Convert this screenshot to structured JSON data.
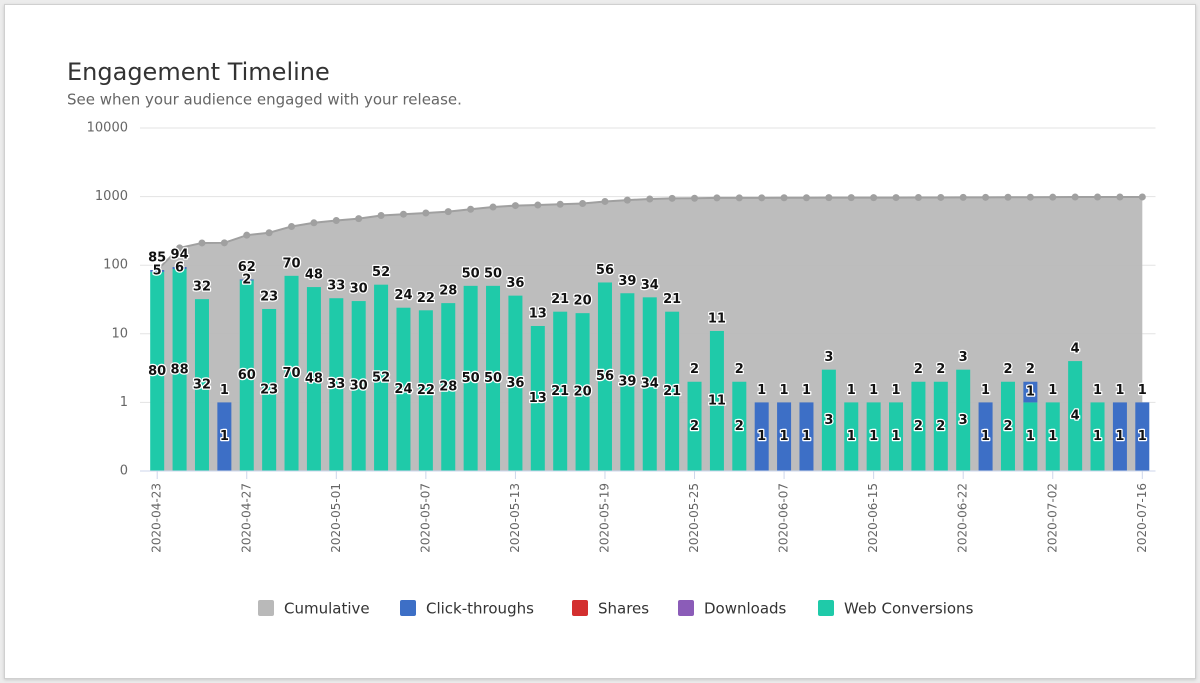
{
  "chart_data": {
    "type": "bar",
    "title": "Engagement Timeline",
    "subtitle": "See when your audience engaged with your release.",
    "log": true,
    "grid": true,
    "legend": "bottom",
    "ylim": [
      0,
      10000
    ],
    "yticks": [
      0,
      1,
      10,
      100,
      1000,
      10000
    ],
    "categories": [
      "2020-04-23",
      null,
      null,
      null,
      "2020-04-27",
      null,
      null,
      null,
      "2020-05-01",
      null,
      null,
      null,
      "2020-05-07",
      null,
      null,
      null,
      "2020-05-13",
      null,
      null,
      null,
      "2020-05-19",
      null,
      null,
      null,
      "2020-05-25",
      null,
      null,
      null,
      "2020-06-07",
      null,
      null,
      null,
      "2020-06-15",
      null,
      null,
      null,
      "2020-06-22",
      null,
      null,
      null,
      "2020-07-02",
      null,
      null,
      null,
      "2020-07-16"
    ],
    "stack_labels": [
      85,
      94,
      32,
      1,
      62,
      23,
      70,
      48,
      33,
      30,
      52,
      24,
      22,
      28,
      50,
      50,
      36,
      13,
      21,
      20,
      56,
      39,
      34,
      21,
      2,
      11,
      2,
      1,
      1,
      1,
      3,
      1,
      1,
      1,
      2,
      2,
      3,
      1,
      2,
      2,
      1,
      4,
      1,
      1,
      1
    ],
    "series": [
      {
        "name": "Cumulative",
        "type": "area",
        "color": "#b9b9b9",
        "values": [
          85,
          179,
          211,
          212,
          274,
          297,
          367,
          415,
          448,
          478,
          530,
          554,
          576,
          604,
          654,
          704,
          740,
          753,
          774,
          794,
          850,
          889,
          923,
          944,
          946,
          957,
          959,
          960,
          961,
          962,
          965,
          966,
          967,
          968,
          970,
          972,
          975,
          976,
          978,
          980,
          981,
          985,
          986,
          987,
          988
        ]
      },
      {
        "name": "Click-throughs",
        "type": "bar",
        "color": "#3d6fc6",
        "values": [
          5,
          6,
          null,
          1,
          2,
          null,
          null,
          null,
          null,
          null,
          null,
          null,
          null,
          null,
          null,
          null,
          null,
          null,
          null,
          null,
          null,
          null,
          null,
          null,
          null,
          null,
          null,
          1,
          1,
          1,
          null,
          null,
          null,
          null,
          null,
          null,
          null,
          1,
          null,
          1,
          null,
          null,
          null,
          1,
          1
        ]
      },
      {
        "name": "Shares",
        "type": "bar",
        "color": "#d32f2f",
        "values": [
          null,
          null,
          null,
          null,
          null,
          null,
          null,
          null,
          null,
          null,
          null,
          null,
          null,
          null,
          null,
          null,
          null,
          null,
          null,
          null,
          null,
          null,
          null,
          null,
          null,
          null,
          null,
          null,
          null,
          null,
          null,
          null,
          null,
          null,
          null,
          null,
          null,
          null,
          null,
          null,
          null,
          null,
          null,
          null,
          null
        ]
      },
      {
        "name": "Downloads",
        "type": "bar",
        "color": "#8b5cb8",
        "values": [
          null,
          null,
          null,
          null,
          null,
          null,
          null,
          null,
          null,
          null,
          null,
          null,
          null,
          null,
          null,
          null,
          null,
          null,
          null,
          null,
          null,
          null,
          null,
          null,
          null,
          null,
          null,
          null,
          null,
          null,
          null,
          null,
          null,
          null,
          null,
          null,
          null,
          null,
          null,
          null,
          null,
          null,
          null,
          null,
          null
        ]
      },
      {
        "name": "Web Conversions",
        "type": "bar",
        "color": "#1fcaa9",
        "values": [
          80,
          88,
          32,
          null,
          60,
          23,
          70,
          48,
          33,
          30,
          52,
          24,
          22,
          28,
          50,
          50,
          36,
          13,
          21,
          20,
          56,
          39,
          34,
          21,
          2,
          11,
          2,
          null,
          null,
          null,
          3,
          1,
          1,
          1,
          2,
          2,
          3,
          null,
          2,
          1,
          1,
          4,
          1,
          null,
          null
        ]
      }
    ]
  }
}
